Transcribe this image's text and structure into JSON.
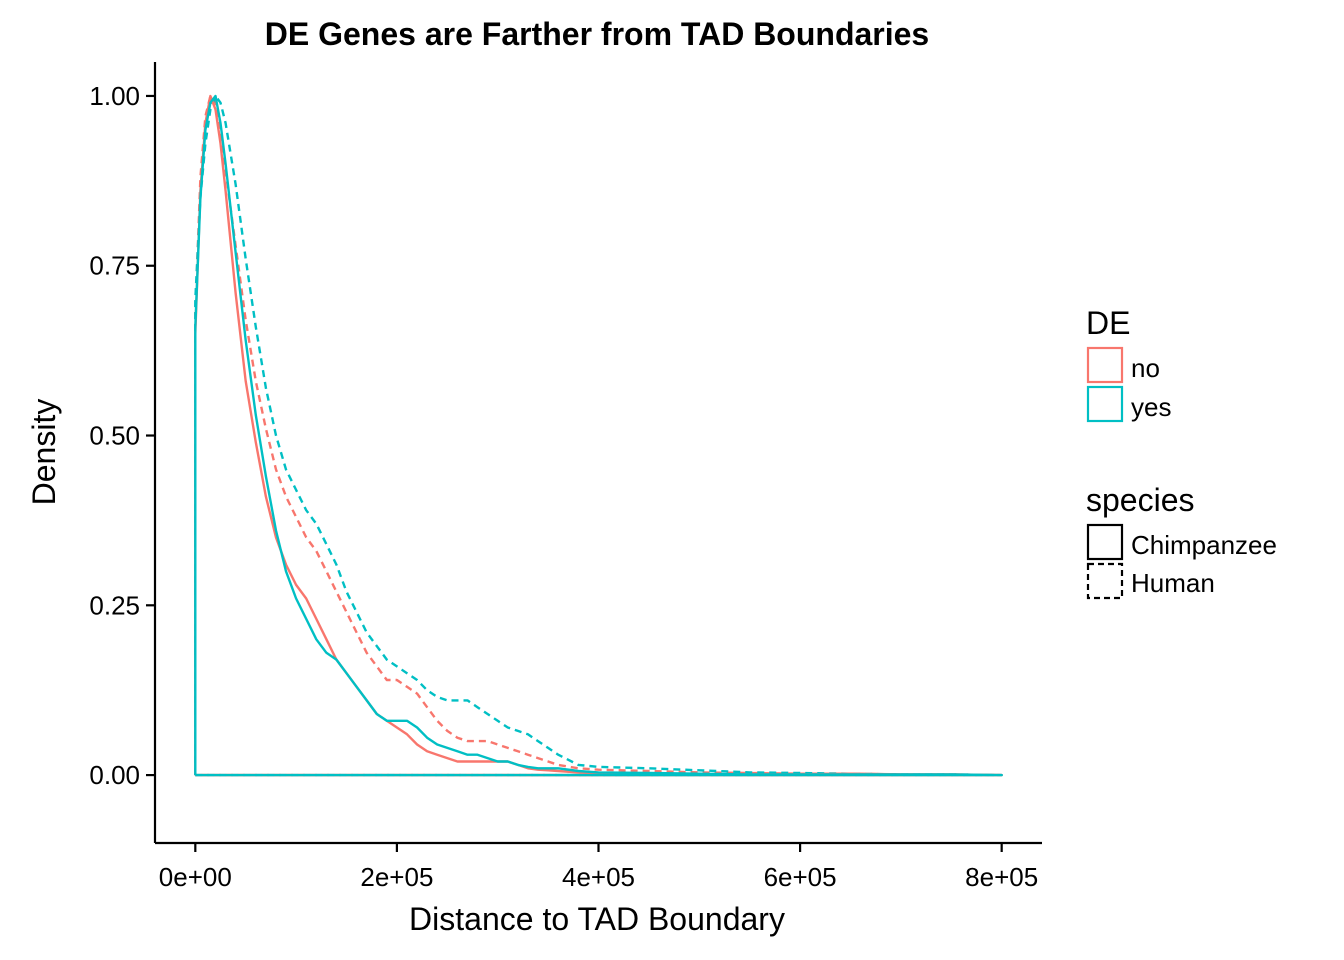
{
  "chart_data": {
    "type": "line",
    "title": "DE Genes are Farther from TAD Boundaries",
    "xlabel": "Distance to TAD Boundary",
    "ylabel": "Density",
    "xlim": [
      -40000,
      840000
    ],
    "ylim": [
      -0.1,
      1.05
    ],
    "x_ticks": [
      0,
      200000,
      400000,
      600000,
      800000
    ],
    "x_tick_labels": [
      "0e+00",
      "2e+05",
      "4e+05",
      "6e+05",
      "8e+05"
    ],
    "y_ticks": [
      0,
      0.25,
      0.5,
      0.75,
      1.0
    ],
    "y_tick_labels": [
      "0.00",
      "0.25",
      "0.50",
      "0.75",
      "1.00"
    ],
    "grid": false,
    "legend_position": "right",
    "legends": [
      {
        "title": "DE",
        "entries": [
          {
            "label": "no",
            "color": "#F8766D",
            "dash": "solid"
          },
          {
            "label": "yes",
            "color": "#00BFC4",
            "dash": "solid"
          }
        ]
      },
      {
        "title": "species",
        "entries": [
          {
            "label": "Chimpanzee",
            "color": "#000000",
            "dash": "solid"
          },
          {
            "label": "Human",
            "color": "#000000",
            "dash": "dashed"
          }
        ]
      }
    ],
    "series": [
      {
        "de": "no",
        "species": "Human",
        "color": "#F8766D",
        "dash": "dashed",
        "x": [
          0,
          0,
          5000,
          10000,
          15000,
          20000,
          25000,
          30000,
          40000,
          50000,
          60000,
          70000,
          80000,
          90000,
          100000,
          110000,
          120000,
          130000,
          140000,
          150000,
          160000,
          170000,
          180000,
          190000,
          200000,
          210000,
          220000,
          230000,
          240000,
          250000,
          260000,
          270000,
          280000,
          290000,
          300000,
          310000,
          320000,
          330000,
          340000,
          350000,
          360000,
          380000,
          400000,
          450000,
          500000,
          550000,
          600000,
          650000,
          700000,
          750000,
          800000,
          800000,
          0
        ],
        "y": [
          0,
          0.68,
          0.88,
          0.97,
          1.0,
          0.99,
          0.95,
          0.89,
          0.78,
          0.67,
          0.58,
          0.51,
          0.45,
          0.41,
          0.38,
          0.35,
          0.33,
          0.3,
          0.27,
          0.24,
          0.21,
          0.18,
          0.16,
          0.14,
          0.14,
          0.13,
          0.12,
          0.1,
          0.08,
          0.065,
          0.055,
          0.05,
          0.05,
          0.05,
          0.045,
          0.04,
          0.035,
          0.03,
          0.025,
          0.02,
          0.015,
          0.01,
          0.008,
          0.006,
          0.004,
          0.003,
          0.002,
          0.002,
          0.001,
          0.001,
          0,
          0,
          0
        ]
      },
      {
        "de": "yes",
        "species": "Human",
        "color": "#00BFC4",
        "dash": "dashed",
        "x": [
          0,
          0,
          5000,
          10000,
          15000,
          20000,
          25000,
          30000,
          40000,
          50000,
          60000,
          70000,
          80000,
          90000,
          100000,
          110000,
          120000,
          130000,
          140000,
          150000,
          160000,
          170000,
          180000,
          190000,
          200000,
          210000,
          220000,
          230000,
          240000,
          250000,
          260000,
          270000,
          280000,
          290000,
          300000,
          310000,
          320000,
          330000,
          340000,
          350000,
          360000,
          380000,
          400000,
          450000,
          500000,
          550000,
          600000,
          650000,
          700000,
          750000,
          800000,
          800000,
          0
        ],
        "y": [
          0,
          0.7,
          0.85,
          0.93,
          0.98,
          1.0,
          0.99,
          0.96,
          0.87,
          0.76,
          0.66,
          0.57,
          0.5,
          0.45,
          0.42,
          0.39,
          0.37,
          0.34,
          0.31,
          0.27,
          0.24,
          0.21,
          0.19,
          0.17,
          0.16,
          0.15,
          0.14,
          0.125,
          0.115,
          0.11,
          0.11,
          0.11,
          0.1,
          0.09,
          0.08,
          0.07,
          0.065,
          0.06,
          0.05,
          0.04,
          0.03,
          0.015,
          0.012,
          0.01,
          0.007,
          0.004,
          0.003,
          0.002,
          0.001,
          0.001,
          0,
          0,
          0
        ]
      },
      {
        "de": "no",
        "species": "Chimpanzee",
        "color": "#F8766D",
        "dash": "solid",
        "x": [
          0,
          0,
          5000,
          10000,
          15000,
          20000,
          25000,
          30000,
          40000,
          50000,
          60000,
          70000,
          80000,
          90000,
          100000,
          110000,
          120000,
          130000,
          140000,
          150000,
          160000,
          170000,
          180000,
          190000,
          200000,
          210000,
          220000,
          230000,
          240000,
          250000,
          260000,
          270000,
          280000,
          290000,
          300000,
          310000,
          320000,
          330000,
          340000,
          350000,
          360000,
          380000,
          400000,
          450000,
          500000,
          550000,
          600000,
          650000,
          700000,
          750000,
          800000,
          800000,
          0
        ],
        "y": [
          0,
          0.65,
          0.86,
          0.96,
          1.0,
          0.98,
          0.93,
          0.86,
          0.71,
          0.58,
          0.49,
          0.41,
          0.35,
          0.31,
          0.28,
          0.26,
          0.23,
          0.2,
          0.17,
          0.15,
          0.13,
          0.11,
          0.09,
          0.08,
          0.07,
          0.06,
          0.045,
          0.035,
          0.03,
          0.025,
          0.02,
          0.02,
          0.02,
          0.02,
          0.02,
          0.02,
          0.015,
          0.01,
          0.008,
          0.007,
          0.006,
          0.004,
          0.003,
          0.002,
          0.001,
          0.001,
          0.001,
          0.002,
          0.001,
          0.001,
          0,
          0,
          0
        ]
      },
      {
        "de": "yes",
        "species": "Chimpanzee",
        "color": "#00BFC4",
        "dash": "solid",
        "x": [
          0,
          0,
          5000,
          10000,
          15000,
          20000,
          25000,
          30000,
          40000,
          50000,
          60000,
          70000,
          80000,
          90000,
          100000,
          110000,
          120000,
          130000,
          140000,
          150000,
          160000,
          170000,
          180000,
          190000,
          200000,
          210000,
          220000,
          230000,
          240000,
          250000,
          260000,
          270000,
          280000,
          290000,
          300000,
          310000,
          320000,
          330000,
          340000,
          350000,
          360000,
          380000,
          400000,
          450000,
          500000,
          550000,
          600000,
          650000,
          700000,
          750000,
          800000,
          800000,
          0
        ],
        "y": [
          0,
          0.66,
          0.85,
          0.95,
          0.99,
          1.0,
          0.96,
          0.9,
          0.77,
          0.64,
          0.53,
          0.44,
          0.36,
          0.3,
          0.26,
          0.23,
          0.2,
          0.18,
          0.17,
          0.15,
          0.13,
          0.11,
          0.09,
          0.08,
          0.08,
          0.08,
          0.07,
          0.055,
          0.045,
          0.04,
          0.035,
          0.03,
          0.03,
          0.025,
          0.02,
          0.02,
          0.015,
          0.012,
          0.01,
          0.01,
          0.01,
          0.006,
          0.004,
          0.003,
          0.002,
          0.001,
          0.001,
          0.001,
          0.001,
          0.001,
          0,
          0,
          0
        ]
      }
    ]
  }
}
